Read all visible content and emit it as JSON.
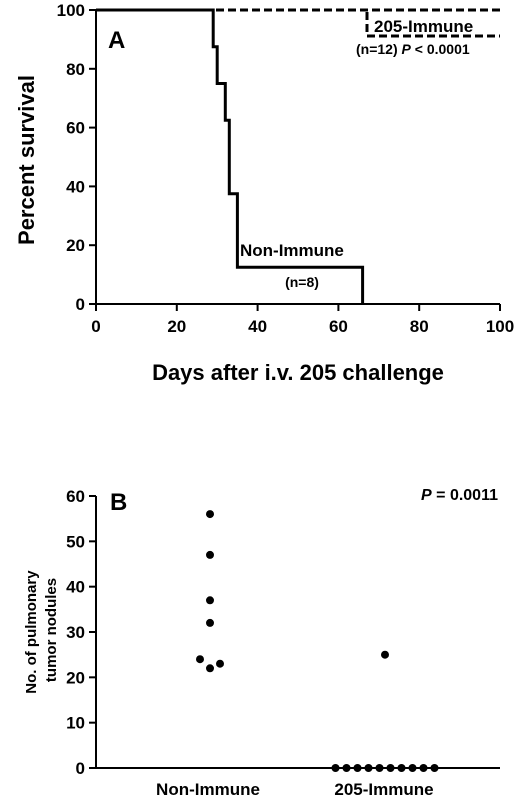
{
  "chart_data": [
    {
      "type": "line",
      "panel_label": "A",
      "xlabel": "Days after i.v. 205 challenge",
      "ylabel": "Percent survival",
      "xlim": [
        0,
        100
      ],
      "ylim": [
        0,
        100
      ],
      "xticks": [
        0,
        20,
        40,
        60,
        80,
        100
      ],
      "yticks": [
        0,
        20,
        40,
        60,
        80,
        100
      ],
      "grid": false,
      "series": [
        {
          "name": "205-Immune",
          "style": "dashed",
          "n_label": "(n=12)",
          "p_prefix": "P",
          "p_value": " < 0.0001",
          "x": [
            0,
            100
          ],
          "y": [
            100,
            100
          ]
        },
        {
          "name": "Non-Immune",
          "style": "solid",
          "n_label": "(n=8)",
          "x": [
            0,
            29,
            29,
            30,
            30,
            32,
            32,
            33,
            33,
            35,
            35,
            66,
            66
          ],
          "y": [
            100,
            100,
            87.5,
            87.5,
            75,
            75,
            62.5,
            62.5,
            37.5,
            37.5,
            12.5,
            12.5,
            0
          ]
        }
      ]
    },
    {
      "type": "scatter",
      "panel_label": "B",
      "ylabel": "No. of pulmonary tumor nodules",
      "ylabel_lines": [
        "No. of pulmonary",
        "tumor nodules"
      ],
      "ylim": [
        0,
        60
      ],
      "yticks": [
        0,
        10,
        20,
        30,
        40,
        50,
        60
      ],
      "categories": [
        "Non-Immune",
        "205-Immune"
      ],
      "p_prefix": "P",
      "p_value": " = 0.0011",
      "grid": false,
      "groups": [
        {
          "category": "Non-Immune",
          "values": [
            56,
            47,
            37,
            32,
            24,
            23,
            22
          ]
        },
        {
          "category": "205-Immune",
          "values": [
            25,
            0,
            0,
            0,
            0,
            0,
            0,
            0,
            0,
            0,
            0
          ]
        }
      ]
    }
  ]
}
